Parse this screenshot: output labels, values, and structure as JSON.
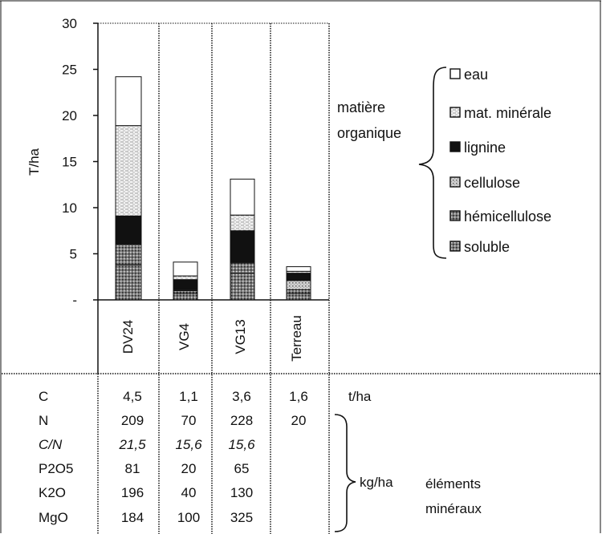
{
  "chart_data": {
    "type": "bar",
    "stacked": true,
    "ylabel": "T/ha",
    "ylim": [
      0,
      30
    ],
    "yticks": [
      "-",
      "5",
      "10",
      "15",
      "20",
      "25",
      "30"
    ],
    "categories": [
      "DV24",
      "VG4",
      "VG13",
      "Terreau"
    ],
    "series": [
      {
        "name": "soluble",
        "pattern": "dense-dots",
        "values": [
          3.8,
          0.7,
          2.9,
          0.7
        ]
      },
      {
        "name": "hémicellulose",
        "pattern": "dense-dots",
        "values": [
          2.2,
          0.3,
          1.1,
          0.4
        ]
      },
      {
        "name": "cellulose",
        "pattern": "light-dots",
        "values": [
          0.1,
          0.1,
          0.1,
          1.0
        ]
      },
      {
        "name": "lignine",
        "pattern": "solid-black",
        "values": [
          3.0,
          1.1,
          3.4,
          0.8
        ]
      },
      {
        "name": "mat. minérale",
        "pattern": "horizontal-lines",
        "values": [
          9.8,
          0.4,
          1.7,
          0.2
        ]
      },
      {
        "name": "eau",
        "pattern": "white",
        "values": [
          5.3,
          1.5,
          3.9,
          0.5
        ]
      }
    ],
    "legend_position": "right",
    "legend_order": [
      "eau",
      "mat. minérale",
      "lignine",
      "cellulose",
      "hémicellulose",
      "soluble"
    ],
    "bracket_label_lines": [
      "matière",
      "organique"
    ]
  },
  "table": {
    "rows": [
      {
        "label": "C",
        "italic": false,
        "values": [
          "4,5",
          "1,1",
          "3,6",
          "1,6"
        ]
      },
      {
        "label": "N",
        "italic": false,
        "values": [
          "209",
          "70",
          "228",
          "20"
        ]
      },
      {
        "label": "C/N",
        "italic": true,
        "values": [
          "21,5",
          "15,6",
          "15,6",
          ""
        ]
      },
      {
        "label": "P2O5",
        "italic": false,
        "values": [
          "81",
          "20",
          "65",
          ""
        ]
      },
      {
        "label": "K2O",
        "italic": false,
        "values": [
          "196",
          "40",
          "130",
          ""
        ]
      },
      {
        "label": "MgO",
        "italic": false,
        "values": [
          "184",
          "100",
          "325",
          ""
        ]
      }
    ],
    "unit_c": "t/ha",
    "unit_minerals": "kg/ha",
    "minerals_label_lines": [
      "éléments",
      "minéraux"
    ]
  },
  "colors": {
    "ink": "#111111",
    "dots": "#777777",
    "light_dots": "#aaaaaa",
    "background": "#ffffff"
  }
}
